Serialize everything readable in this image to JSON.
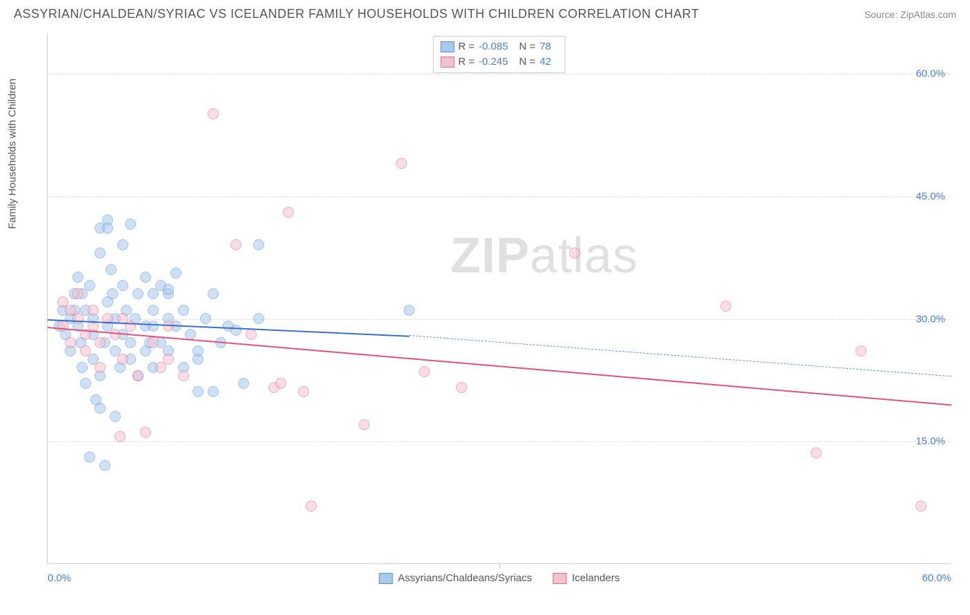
{
  "header": {
    "title": "ASSYRIAN/CHALDEAN/SYRIAC VS ICELANDER FAMILY HOUSEHOLDS WITH CHILDREN CORRELATION CHART",
    "source": "Source: ZipAtlas.com"
  },
  "watermark": {
    "zip": "ZIP",
    "atlas": "atlas"
  },
  "chart": {
    "type": "scatter",
    "xlim": [
      0,
      60
    ],
    "ylim": [
      0,
      65
    ],
    "xticks": [
      0,
      30,
      60
    ],
    "xtick_labels": [
      "0.0%",
      "",
      "60.0%"
    ],
    "yticks": [
      15,
      30,
      45,
      60
    ],
    "ytick_labels": [
      "15.0%",
      "30.0%",
      "45.0%",
      "60.0%"
    ],
    "ylabel": "Family Households with Children",
    "background_color": "#ffffff",
    "grid_color": "#dddddd",
    "axis_color": "#cccccc",
    "tick_label_color": "#4a7fd6",
    "marker_radius": 8,
    "marker_border_width": 1.5,
    "series": [
      {
        "name": "Assyrians/Chaldeans/Syriacs",
        "fill_color": "#a8c8ec",
        "border_color": "#5a93d4",
        "fill_opacity": 0.55,
        "stats": {
          "R": "-0.085",
          "N": "78"
        },
        "trend": {
          "solid": {
            "x1": 0,
            "y1": 30.0,
            "x2": 24,
            "y2": 28.0,
            "color": "#3b6fc9",
            "width": 2
          },
          "dashed": {
            "x1": 24,
            "y1": 28.0,
            "x2": 60,
            "y2": 23.0,
            "color": "#5a93d4",
            "width": 1.5,
            "dash": "6,5"
          }
        },
        "points": [
          [
            0.8,
            29
          ],
          [
            1.0,
            31
          ],
          [
            1.2,
            28
          ],
          [
            1.5,
            30
          ],
          [
            1.5,
            26
          ],
          [
            1.8,
            33
          ],
          [
            2.0,
            29
          ],
          [
            2.0,
            35
          ],
          [
            2.2,
            27
          ],
          [
            2.3,
            24
          ],
          [
            2.5,
            31
          ],
          [
            2.5,
            22
          ],
          [
            2.8,
            34
          ],
          [
            3.0,
            28
          ],
          [
            3.0,
            30
          ],
          [
            3.2,
            20
          ],
          [
            3.5,
            23
          ],
          [
            3.5,
            38
          ],
          [
            3.5,
            41
          ],
          [
            3.8,
            27
          ],
          [
            4.0,
            29
          ],
          [
            4.0,
            32
          ],
          [
            4.0,
            42
          ],
          [
            4.0,
            41
          ],
          [
            4.2,
            36
          ],
          [
            4.5,
            26
          ],
          [
            4.5,
            30
          ],
          [
            4.8,
            24
          ],
          [
            5.0,
            28
          ],
          [
            5.0,
            34
          ],
          [
            5.0,
            39
          ],
          [
            5.2,
            31
          ],
          [
            5.5,
            25
          ],
          [
            5.5,
            27
          ],
          [
            5.5,
            41.5
          ],
          [
            5.8,
            30
          ],
          [
            6.0,
            33
          ],
          [
            6.0,
            23
          ],
          [
            6.5,
            29
          ],
          [
            6.5,
            35
          ],
          [
            6.5,
            26
          ],
          [
            7.0,
            24
          ],
          [
            7.0,
            31
          ],
          [
            7.0,
            29
          ],
          [
            7.0,
            33
          ],
          [
            7.5,
            34
          ],
          [
            7.5,
            27
          ],
          [
            8.0,
            26
          ],
          [
            8.0,
            30
          ],
          [
            8.0,
            33
          ],
          [
            8.0,
            33.5
          ],
          [
            8.5,
            35.5
          ],
          [
            8.5,
            29
          ],
          [
            9.0,
            24
          ],
          [
            9.0,
            31
          ],
          [
            9.5,
            28
          ],
          [
            10.0,
            21
          ],
          [
            10.0,
            25
          ],
          [
            10.0,
            26
          ],
          [
            10.5,
            30
          ],
          [
            11.0,
            21
          ],
          [
            11.0,
            33
          ],
          [
            11.5,
            27
          ],
          [
            12.0,
            29
          ],
          [
            12.5,
            28.5
          ],
          [
            13.0,
            22
          ],
          [
            14.0,
            39
          ],
          [
            14.0,
            30
          ],
          [
            3.5,
            19
          ],
          [
            2.8,
            13
          ],
          [
            3.8,
            12
          ],
          [
            4.5,
            18
          ],
          [
            24.0,
            31
          ],
          [
            3.0,
            25
          ],
          [
            1.8,
            31
          ],
          [
            2.3,
            33
          ],
          [
            4.3,
            33
          ],
          [
            6.8,
            27
          ]
        ]
      },
      {
        "name": "Icelanders",
        "fill_color": "#f4c2cf",
        "border_color": "#e26a8b",
        "fill_opacity": 0.55,
        "stats": {
          "R": "-0.245",
          "N": "42"
        },
        "trend": {
          "solid": {
            "x1": 0,
            "y1": 29.0,
            "x2": 60,
            "y2": 19.5,
            "color": "#e0517a",
            "width": 2
          }
        },
        "points": [
          [
            1.0,
            29
          ],
          [
            1.0,
            32
          ],
          [
            1.5,
            31
          ],
          [
            1.5,
            27
          ],
          [
            2.0,
            30
          ],
          [
            2.0,
            33
          ],
          [
            2.5,
            28
          ],
          [
            2.5,
            26
          ],
          [
            3.0,
            31
          ],
          [
            3.0,
            29
          ],
          [
            3.5,
            27
          ],
          [
            3.5,
            24
          ],
          [
            4.0,
            30
          ],
          [
            4.5,
            28
          ],
          [
            5.0,
            25
          ],
          [
            5.0,
            30
          ],
          [
            5.5,
            29
          ],
          [
            6.0,
            23
          ],
          [
            7.0,
            27
          ],
          [
            7.5,
            24
          ],
          [
            8.0,
            29
          ],
          [
            8.0,
            25
          ],
          [
            9.0,
            23
          ],
          [
            11.0,
            55
          ],
          [
            12.5,
            39
          ],
          [
            13.5,
            28
          ],
          [
            15.0,
            21.5
          ],
          [
            16.0,
            43
          ],
          [
            15.5,
            22
          ],
          [
            17.0,
            21
          ],
          [
            17.5,
            7
          ],
          [
            21.0,
            17
          ],
          [
            23.5,
            49
          ],
          [
            25.0,
            23.5
          ],
          [
            27.5,
            21.5
          ],
          [
            35.0,
            38
          ],
          [
            45.0,
            31.5
          ],
          [
            51.0,
            13.5
          ],
          [
            54.0,
            26
          ],
          [
            58.0,
            7
          ],
          [
            6.5,
            16
          ],
          [
            4.8,
            15.5
          ]
        ]
      }
    ],
    "legend": {
      "items": [
        {
          "label": "Assyrians/Chaldeans/Syriacs",
          "fill": "#a8c8ec",
          "border": "#5a93d4"
        },
        {
          "label": "Icelanders",
          "fill": "#f4c2cf",
          "border": "#e26a8b"
        }
      ]
    }
  }
}
